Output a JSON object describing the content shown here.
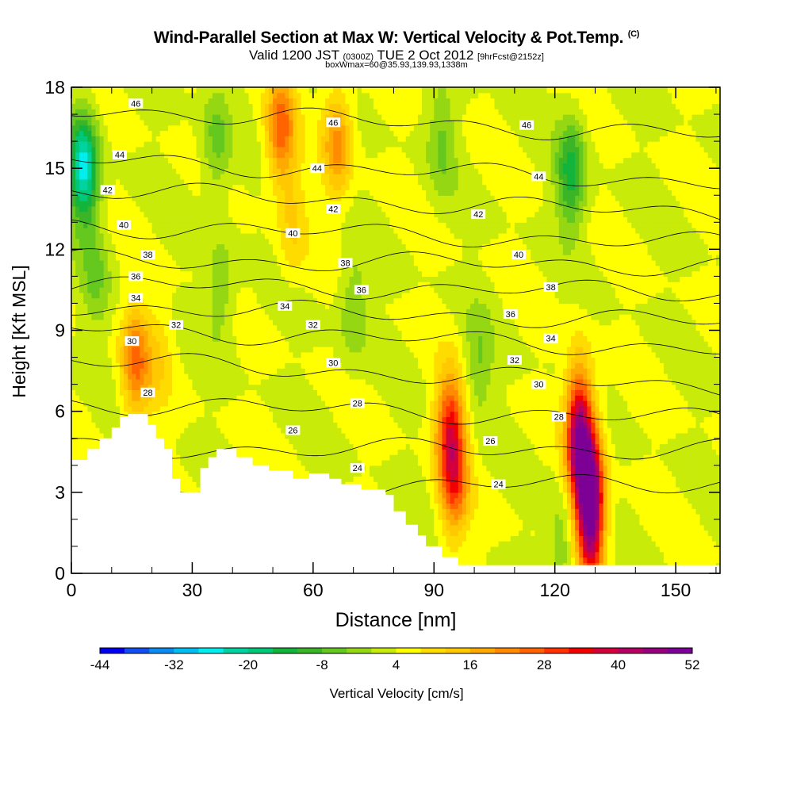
{
  "chart_data": {
    "type": "heatmap",
    "title": "Wind-Parallel Section at Max W: Vertical Velocity & Pot.Temp.",
    "title_mark": "(C)",
    "subtitle_main": "Valid 1200 JST",
    "subtitle_utc": "(0300Z)",
    "subtitle_date": "TUE 2 Oct 2012",
    "subtitle_fcst": "[9hrFcst@2152z]",
    "subtitle2": "boxWmax=60@35.93,139.93,1338m",
    "xlabel": "Distance [nm]",
    "ylabel": "Height [Kft MSL]",
    "xlim": [
      0,
      161
    ],
    "ylim": [
      0,
      18
    ],
    "xticks": [
      0,
      30,
      60,
      90,
      120,
      150
    ],
    "yticks": [
      0,
      3,
      6,
      9,
      12,
      15,
      18
    ],
    "grid": false,
    "colorbar": {
      "label": "Vertical Velocity [cm/s]",
      "tick_labels": [
        "-44",
        "-32",
        "-20",
        "-8",
        "4",
        "16",
        "28",
        "40",
        "52"
      ],
      "colors": [
        "#0000ee",
        "#1150ee",
        "#0a8cf0",
        "#00bff0",
        "#00eeee",
        "#00d2a0",
        "#00c878",
        "#12b43c",
        "#3cb428",
        "#64c81e",
        "#96d714",
        "#c8eb0a",
        "#ffff00",
        "#ffdc00",
        "#ffc800",
        "#ffaa00",
        "#ff8c00",
        "#ff6400",
        "#ff3200",
        "#f00000",
        "#d2003c",
        "#b40064",
        "#96007c",
        "#7d0096"
      ]
    },
    "velocity_features": [
      {
        "x": 3,
        "z": 15,
        "w": -30
      },
      {
        "x": 6,
        "z": 11,
        "w": -8
      },
      {
        "x": 16,
        "z": 7.8,
        "w": 20
      },
      {
        "x": 22,
        "z": 8,
        "w": 6
      },
      {
        "x": 36,
        "z": 16,
        "w": -10
      },
      {
        "x": 37,
        "z": 10.5,
        "w": -8
      },
      {
        "x": 52,
        "z": 16.5,
        "w": 22
      },
      {
        "x": 55,
        "z": 13,
        "w": 8
      },
      {
        "x": 66,
        "z": 16,
        "w": 18
      },
      {
        "x": 70,
        "z": 9.8,
        "w": -8
      },
      {
        "x": 92,
        "z": 16,
        "w": -8
      },
      {
        "x": 94,
        "z": 5.5,
        "w": 26
      },
      {
        "x": 95,
        "z": 3.3,
        "w": 22
      },
      {
        "x": 101,
        "z": 7.8,
        "w": -8
      },
      {
        "x": 124,
        "z": 14.8,
        "w": -18
      },
      {
        "x": 126,
        "z": 5,
        "w": 42
      },
      {
        "x": 129,
        "z": 2.5,
        "w": 52
      },
      {
        "x": 122,
        "z": 1.1,
        "w": -8
      }
    ],
    "theta_contours": [
      {
        "label": "24",
        "z0": 3.0,
        "z1": 3.4
      },
      {
        "label": "26",
        "z0": 4.6,
        "z1": 4.6
      },
      {
        "label": "28",
        "z0": 6.3,
        "z1": 5.7
      },
      {
        "label": "30",
        "z0": 7.9,
        "z1": 6.9
      },
      {
        "label": "32",
        "z0": 9.1,
        "z1": 8.3
      },
      {
        "label": "34",
        "z0": 9.9,
        "z1": 9.3
      },
      {
        "label": "36",
        "z0": 10.7,
        "z1": 10.4
      },
      {
        "label": "38",
        "z0": 11.6,
        "z1": 11.4
      },
      {
        "label": "40",
        "z0": 12.9,
        "z1": 12.2
      },
      {
        "label": "42",
        "z0": 14.2,
        "z1": 13.3
      },
      {
        "label": "44",
        "z0": 15.3,
        "z1": 14.5
      },
      {
        "label": "46",
        "z0": 17.2,
        "z1": 16.2
      }
    ],
    "terrain": [
      [
        0,
        4.2
      ],
      [
        4,
        4.2
      ],
      [
        4,
        4.6
      ],
      [
        7,
        4.6
      ],
      [
        7,
        5.0
      ],
      [
        10,
        5.0
      ],
      [
        10,
        5.4
      ],
      [
        12,
        5.4
      ],
      [
        12,
        5.8
      ],
      [
        14,
        5.8
      ],
      [
        14,
        5.9
      ],
      [
        19,
        5.9
      ],
      [
        19,
        5.5
      ],
      [
        21,
        5.5
      ],
      [
        21,
        5.0
      ],
      [
        23,
        5.0
      ],
      [
        23,
        4.6
      ],
      [
        25,
        4.6
      ],
      [
        25,
        3.5
      ],
      [
        27,
        3.5
      ],
      [
        27,
        3.0
      ],
      [
        30,
        3.0
      ],
      [
        30,
        3.0
      ],
      [
        32,
        3.0
      ],
      [
        32,
        3.9
      ],
      [
        34,
        3.9
      ],
      [
        34,
        4.3
      ],
      [
        36,
        4.3
      ],
      [
        36,
        4.6
      ],
      [
        41,
        4.6
      ],
      [
        41,
        4.3
      ],
      [
        45,
        4.3
      ],
      [
        45,
        4.0
      ],
      [
        49,
        4.0
      ],
      [
        49,
        3.8
      ],
      [
        55,
        3.8
      ],
      [
        55,
        3.5
      ],
      [
        59,
        3.5
      ],
      [
        59,
        3.7
      ],
      [
        64,
        3.7
      ],
      [
        64,
        3.5
      ],
      [
        67,
        3.5
      ],
      [
        67,
        3.3
      ],
      [
        72,
        3.3
      ],
      [
        72,
        3.1
      ],
      [
        78,
        3.1
      ],
      [
        78,
        2.9
      ],
      [
        80,
        2.9
      ],
      [
        80,
        2.3
      ],
      [
        83,
        2.3
      ],
      [
        83,
        1.8
      ],
      [
        86,
        1.8
      ],
      [
        86,
        1.4
      ],
      [
        88,
        1.4
      ],
      [
        88,
        1.0
      ],
      [
        92,
        1.0
      ],
      [
        92,
        0.6
      ],
      [
        96,
        0.6
      ],
      [
        96,
        0.3
      ],
      [
        100,
        0.3
      ],
      [
        100,
        0.0
      ]
    ],
    "theta_label_positions": [
      {
        "label": "46",
        "x": 16,
        "z": 17.4
      },
      {
        "label": "44",
        "x": 12,
        "z": 15.5
      },
      {
        "label": "42",
        "x": 9,
        "z": 14.2
      },
      {
        "label": "40",
        "x": 13,
        "z": 12.9
      },
      {
        "label": "38",
        "x": 19,
        "z": 11.8
      },
      {
        "label": "36",
        "x": 16,
        "z": 11.0
      },
      {
        "label": "34",
        "x": 16,
        "z": 10.2
      },
      {
        "label": "32",
        "x": 26,
        "z": 9.2
      },
      {
        "label": "30",
        "x": 15,
        "z": 8.6
      },
      {
        "label": "28",
        "x": 19,
        "z": 6.7
      },
      {
        "label": "46",
        "x": 65,
        "z": 16.7
      },
      {
        "label": "44",
        "x": 61,
        "z": 15.0
      },
      {
        "label": "42",
        "x": 65,
        "z": 13.5
      },
      {
        "label": "40",
        "x": 55,
        "z": 12.6
      },
      {
        "label": "38",
        "x": 68,
        "z": 11.5
      },
      {
        "label": "36",
        "x": 72,
        "z": 10.5
      },
      {
        "label": "34",
        "x": 53,
        "z": 9.9
      },
      {
        "label": "32",
        "x": 60,
        "z": 9.2
      },
      {
        "label": "30",
        "x": 65,
        "z": 7.8
      },
      {
        "label": "28",
        "x": 71,
        "z": 6.3
      },
      {
        "label": "26",
        "x": 55,
        "z": 5.3
      },
      {
        "label": "24",
        "x": 71,
        "z": 3.9
      },
      {
        "label": "46",
        "x": 113,
        "z": 16.6
      },
      {
        "label": "44",
        "x": 116,
        "z": 14.7
      },
      {
        "label": "42",
        "x": 101,
        "z": 13.3
      },
      {
        "label": "40",
        "x": 111,
        "z": 11.8
      },
      {
        "label": "38",
        "x": 119,
        "z": 10.6
      },
      {
        "label": "36",
        "x": 109,
        "z": 9.6
      },
      {
        "label": "34",
        "x": 119,
        "z": 8.7
      },
      {
        "label": "32",
        "x": 110,
        "z": 7.9
      },
      {
        "label": "30",
        "x": 116,
        "z": 7.0
      },
      {
        "label": "28",
        "x": 121,
        "z": 5.8
      },
      {
        "label": "26",
        "x": 104,
        "z": 4.9
      },
      {
        "label": "24",
        "x": 106,
        "z": 3.3
      }
    ]
  }
}
